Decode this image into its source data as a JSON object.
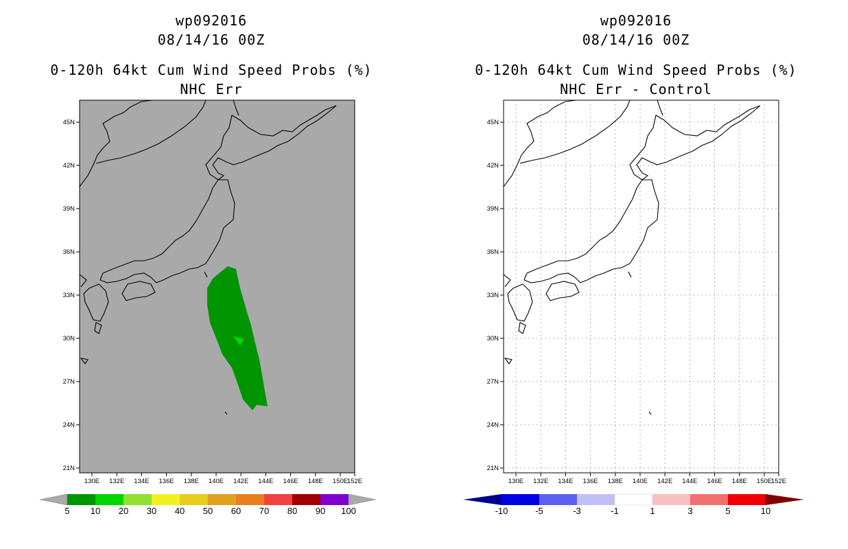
{
  "left_panel": {
    "storm_id": "wp092016",
    "datetime": "08/14/16 00Z",
    "product": "0-120h 64kt Cum Wind Speed Probs (%)",
    "subtitle": "NHC Err",
    "background_color": "#a9a9a9",
    "colorbar_labels": [
      "5",
      "10",
      "20",
      "30",
      "40",
      "50",
      "60",
      "70",
      "80",
      "90",
      "100"
    ],
    "colorbar_colors": [
      "#009500",
      "#00d600",
      "#90e030",
      "#f0f020",
      "#e8cc20",
      "#e0a020",
      "#e88020",
      "#f04040",
      "#a00000",
      "#8000d0"
    ]
  },
  "right_panel": {
    "storm_id": "wp092016",
    "datetime": "08/14/16 00Z",
    "product": "0-120h 64kt Cum Wind Speed Probs (%)",
    "subtitle": "NHC Err - Control",
    "colorbar_labels": [
      "-10",
      "-5",
      "-3",
      "-1",
      "1",
      "3",
      "5",
      "10"
    ],
    "colorbar_colors": [
      "#0000e0",
      "#6060f0",
      "#c0c0f8",
      "#ffffff",
      "#f8c0c0",
      "#f07070",
      "#f00000"
    ]
  },
  "map": {
    "lat_labels": [
      "45N",
      "42N",
      "39N",
      "36N",
      "33N",
      "30N",
      "27N",
      "24N",
      "21N"
    ],
    "lon_labels": [
      "130E",
      "132E",
      "134E",
      "136E",
      "138E",
      "140E",
      "142E",
      "144E",
      "146E",
      "148E",
      "150E",
      "152E"
    ]
  },
  "probability_region": {
    "category_main": "5",
    "category_inner": "10",
    "color_main": "#009500",
    "color_inner": "#00d600"
  }
}
